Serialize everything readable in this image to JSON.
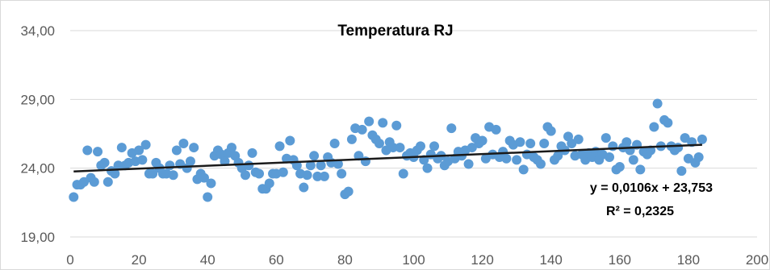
{
  "chart_data": {
    "type": "scatter",
    "title": "Temperatura RJ",
    "xlim": [
      0,
      200
    ],
    "ylim": [
      19,
      34
    ],
    "x_ticks": [
      "0",
      "20",
      "40",
      "60",
      "80",
      "100",
      "120",
      "140",
      "160",
      "180",
      "200"
    ],
    "y_ticks": [
      "19,00",
      "24,00",
      "29,00",
      "34,00"
    ],
    "grid": "horizontal",
    "colors": {
      "points": "#5B9BD5",
      "trendline": "#1a1a1a",
      "grid": "#d9d9d9"
    },
    "trendline": {
      "slope": 0.0106,
      "intercept": 23.753,
      "x_range": [
        1,
        184
      ],
      "equation_label": "y = 0,0106x + 23,753",
      "r2_label": "R² = 0,2325"
    },
    "series": [
      {
        "points": [
          [
            1,
            21.9
          ],
          [
            2,
            22.8
          ],
          [
            3,
            22.8
          ],
          [
            4,
            23.0
          ],
          [
            5,
            25.3
          ],
          [
            6,
            23.3
          ],
          [
            7,
            23.0
          ],
          [
            8,
            25.2
          ],
          [
            9,
            24.2
          ],
          [
            10,
            24.4
          ],
          [
            11,
            23.0
          ],
          [
            12,
            23.8
          ],
          [
            13,
            23.6
          ],
          [
            14,
            24.2
          ],
          [
            15,
            25.5
          ],
          [
            16,
            24.2
          ],
          [
            17,
            24.4
          ],
          [
            18,
            25.1
          ],
          [
            19,
            24.5
          ],
          [
            20,
            25.3
          ],
          [
            21,
            24.6
          ],
          [
            22,
            25.7
          ],
          [
            23,
            23.6
          ],
          [
            24,
            23.6
          ],
          [
            25,
            24.4
          ],
          [
            26,
            24.0
          ],
          [
            27,
            23.6
          ],
          [
            28,
            23.6
          ],
          [
            29,
            24.2
          ],
          [
            30,
            23.5
          ],
          [
            31,
            25.3
          ],
          [
            32,
            24.3
          ],
          [
            33,
            25.8
          ],
          [
            34,
            24.0
          ],
          [
            35,
            24.5
          ],
          [
            36,
            25.5
          ],
          [
            37,
            23.2
          ],
          [
            38,
            23.6
          ],
          [
            39,
            23.3
          ],
          [
            40,
            21.9
          ],
          [
            41,
            22.9
          ],
          [
            42,
            24.9
          ],
          [
            43,
            25.3
          ],
          [
            44,
            25.0
          ],
          [
            45,
            24.5
          ],
          [
            46,
            25.1
          ],
          [
            47,
            25.5
          ],
          [
            48,
            24.9
          ],
          [
            49,
            24.4
          ],
          [
            50,
            24.0
          ],
          [
            51,
            23.5
          ],
          [
            52,
            24.2
          ],
          [
            53,
            25.1
          ],
          [
            54,
            23.7
          ],
          [
            55,
            23.6
          ],
          [
            56,
            22.5
          ],
          [
            57,
            22.5
          ],
          [
            58,
            22.9
          ],
          [
            59,
            23.6
          ],
          [
            60,
            23.6
          ],
          [
            61,
            25.6
          ],
          [
            62,
            23.7
          ],
          [
            63,
            24.7
          ],
          [
            64,
            26.0
          ],
          [
            65,
            24.6
          ],
          [
            66,
            24.2
          ],
          [
            67,
            23.6
          ],
          [
            68,
            22.6
          ],
          [
            69,
            23.5
          ],
          [
            70,
            24.2
          ],
          [
            71,
            24.9
          ],
          [
            72,
            23.4
          ],
          [
            73,
            24.2
          ],
          [
            74,
            23.4
          ],
          [
            75,
            24.8
          ],
          [
            76,
            24.4
          ],
          [
            77,
            25.8
          ],
          [
            78,
            24.3
          ],
          [
            79,
            23.6
          ],
          [
            80,
            22.1
          ],
          [
            81,
            22.3
          ],
          [
            82,
            26.1
          ],
          [
            83,
            26.9
          ],
          [
            84,
            24.9
          ],
          [
            85,
            26.8
          ],
          [
            86,
            24.5
          ],
          [
            87,
            27.4
          ],
          [
            88,
            26.4
          ],
          [
            89,
            26.1
          ],
          [
            90,
            25.8
          ],
          [
            91,
            27.3
          ],
          [
            92,
            25.3
          ],
          [
            93,
            25.9
          ],
          [
            94,
            25.5
          ],
          [
            95,
            27.1
          ],
          [
            96,
            25.5
          ],
          [
            97,
            23.6
          ],
          [
            98,
            24.9
          ],
          [
            99,
            25.1
          ],
          [
            100,
            24.8
          ],
          [
            101,
            25.3
          ],
          [
            102,
            25.6
          ],
          [
            103,
            24.6
          ],
          [
            104,
            24.0
          ],
          [
            105,
            25.0
          ],
          [
            106,
            25.6
          ],
          [
            107,
            24.7
          ],
          [
            108,
            24.9
          ],
          [
            109,
            24.2
          ],
          [
            110,
            24.5
          ],
          [
            111,
            26.9
          ],
          [
            112,
            24.7
          ],
          [
            113,
            25.2
          ],
          [
            114,
            24.9
          ],
          [
            115,
            25.3
          ],
          [
            116,
            24.3
          ],
          [
            117,
            25.5
          ],
          [
            118,
            26.2
          ],
          [
            119,
            25.8
          ],
          [
            120,
            26.0
          ],
          [
            121,
            24.7
          ],
          [
            122,
            27.0
          ],
          [
            123,
            25.0
          ],
          [
            124,
            26.8
          ],
          [
            125,
            24.8
          ],
          [
            126,
            25.2
          ],
          [
            127,
            24.7
          ],
          [
            128,
            26.0
          ],
          [
            129,
            25.7
          ],
          [
            130,
            24.6
          ],
          [
            131,
            25.9
          ],
          [
            132,
            23.9
          ],
          [
            133,
            25.0
          ],
          [
            134,
            25.8
          ],
          [
            135,
            24.8
          ],
          [
            136,
            24.6
          ],
          [
            137,
            24.3
          ],
          [
            138,
            25.8
          ],
          [
            139,
            27.0
          ],
          [
            140,
            26.7
          ],
          [
            141,
            24.6
          ],
          [
            142,
            24.9
          ],
          [
            143,
            25.6
          ],
          [
            144,
            25.3
          ],
          [
            145,
            26.3
          ],
          [
            146,
            25.8
          ],
          [
            147,
            24.9
          ],
          [
            148,
            26.1
          ],
          [
            149,
            25.0
          ],
          [
            150,
            24.6
          ],
          [
            151,
            25.1
          ],
          [
            152,
            24.8
          ],
          [
            153,
            25.2
          ],
          [
            154,
            24.6
          ],
          [
            155,
            25.0
          ],
          [
            156,
            26.2
          ],
          [
            157,
            24.8
          ],
          [
            158,
            25.6
          ],
          [
            159,
            23.9
          ],
          [
            160,
            24.1
          ],
          [
            161,
            25.5
          ],
          [
            162,
            25.9
          ],
          [
            163,
            25.3
          ],
          [
            164,
            24.6
          ],
          [
            165,
            25.7
          ],
          [
            166,
            23.9
          ],
          [
            167,
            25.2
          ],
          [
            168,
            25.0
          ],
          [
            169,
            25.3
          ],
          [
            170,
            27.0
          ],
          [
            171,
            28.7
          ],
          [
            172,
            25.6
          ],
          [
            173,
            27.5
          ],
          [
            174,
            27.3
          ],
          [
            175,
            25.6
          ],
          [
            176,
            25.3
          ],
          [
            177,
            25.5
          ],
          [
            178,
            23.8
          ],
          [
            179,
            26.2
          ],
          [
            180,
            24.7
          ],
          [
            181,
            25.9
          ],
          [
            182,
            24.4
          ],
          [
            183,
            24.8
          ],
          [
            184,
            26.1
          ]
        ]
      }
    ]
  }
}
